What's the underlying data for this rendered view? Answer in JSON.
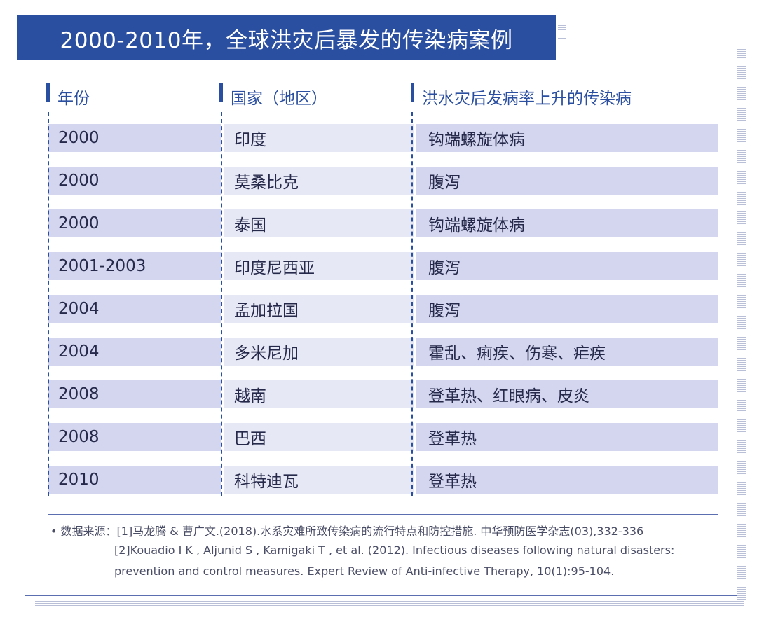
{
  "title": "2000-2010年，全球洪灾后暴发的传染病案例",
  "table": {
    "headers": [
      "年份",
      "国家（地区）",
      "洪水灾后发病率上升的传染病"
    ],
    "rows": [
      {
        "year": "2000",
        "country": "印度",
        "disease": "钩端螺旋体病"
      },
      {
        "year": "2000",
        "country": "莫桑比克",
        "disease": "腹泻"
      },
      {
        "year": "2000",
        "country": "泰国",
        "disease": "钩端螺旋体病"
      },
      {
        "year": "2001-2003",
        "country": "印度尼西亚",
        "disease": "腹泻"
      },
      {
        "year": "2004",
        "country": "孟加拉国",
        "disease": "腹泻"
      },
      {
        "year": "2004",
        "country": "多米尼加",
        "disease": "霍乱、痢疾、伤寒、疟疾"
      },
      {
        "year": "2008",
        "country": "越南",
        "disease": "登革热、红眼病、皮炎"
      },
      {
        "year": "2008",
        "country": "巴西",
        "disease": "登革热"
      },
      {
        "year": "2010",
        "country": "科特迪瓦",
        "disease": "登革热"
      }
    ]
  },
  "source": {
    "label": "• 数据来源：",
    "line1": "[1]马龙腾 & 曹广文.(2018).水系灾难所致传染病的流行特点和防控措施. 中华预防医学杂志(03),332-336",
    "line2": "[2]Kouadio I K , Aljunid S , Kamigaki T , et al. (2012). Infectious diseases following natural disasters:",
    "line3": "prevention and control measures. Expert Review of Anti-infective Therapy, 10(1):95-104."
  },
  "colors": {
    "accent": "#2b4fa0",
    "row_dark": "#d3d6ee",
    "row_light": "#e6e8f5"
  }
}
